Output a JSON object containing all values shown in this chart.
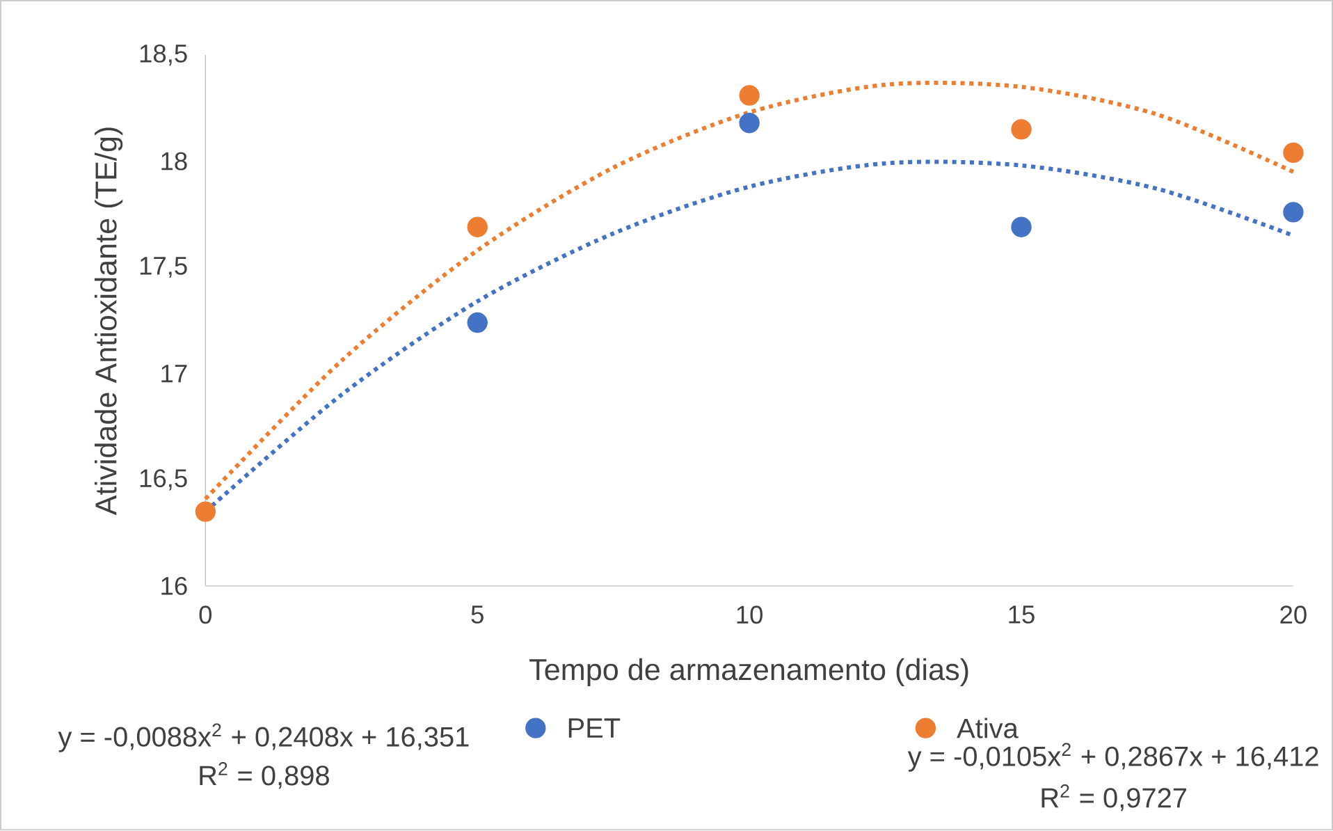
{
  "chart_data": {
    "type": "scatter",
    "xlabel": "Tempo de armazenamento (dias)",
    "ylabel": "Atividade Antioxidante (TE/g)",
    "x": [
      0,
      5,
      10,
      15,
      20
    ],
    "xlim": [
      0,
      20
    ],
    "xticks": [
      0,
      5,
      10,
      15,
      20
    ],
    "ylim": [
      16,
      18.5
    ],
    "yticks": [
      16,
      {
        "value": 16.5,
        "label": "16,5"
      },
      17,
      {
        "value": 17.5,
        "label": "17,5"
      },
      18,
      {
        "value": 18.5,
        "label": "18,5"
      }
    ],
    "marker": "circle",
    "legend": "bottom",
    "grid": false,
    "series": [
      {
        "name": "PET",
        "color": "#4472c4",
        "values": [
          null,
          17.24,
          18.18,
          17.69,
          17.76
        ]
      },
      {
        "name": "Ativa",
        "color": "#ed7d31",
        "values": [
          16.35,
          17.69,
          18.31,
          18.15,
          18.04
        ]
      },
      {
        "type": "line",
        "color": "#4472c4",
        "marker": "none",
        "line_style": "dotted",
        "x": [
          0,
          2.5,
          5,
          7.5,
          10,
          12.5,
          15,
          17.5,
          20
        ],
        "values": [
          16.35,
          16.9,
          17.34,
          17.66,
          17.88,
          17.99,
          17.98,
          17.87,
          17.65
        ]
      },
      {
        "type": "line",
        "color": "#ed7d31",
        "marker": "none",
        "line_style": "dotted",
        "x": [
          0,
          2.5,
          5,
          7.5,
          10,
          12.5,
          15,
          17.5,
          20
        ],
        "values": [
          16.41,
          17.06,
          17.58,
          17.97,
          18.23,
          18.36,
          18.35,
          18.22,
          17.95
        ]
      }
    ],
    "annotations": [
      "y = -0,0088x$^{2}$ + 0,2408x + 16,351",
      "R$^{2}$ = 0,898",
      "y = -0,0105x$^{2}$ + 0,2867x + 16,412",
      "R$^{2}$ = 0,9727"
    ]
  }
}
